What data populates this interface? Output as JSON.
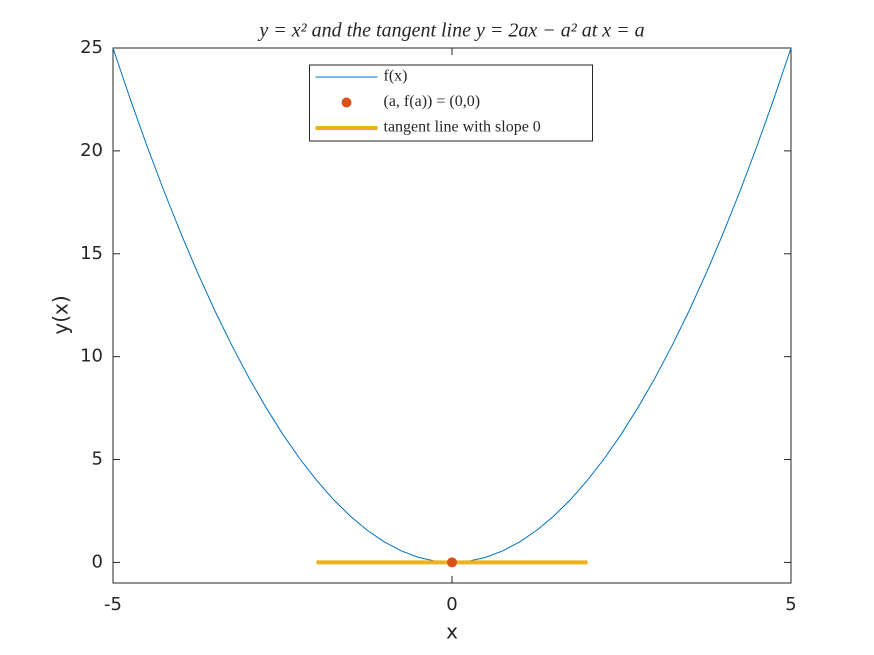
{
  "chart_data": {
    "type": "line",
    "title": "y = x² and the tangent line y = 2ax − a² at x = a",
    "xlabel": "x",
    "ylabel": "y(x)",
    "xlim": [
      -5,
      5
    ],
    "ylim": [
      -1,
      25
    ],
    "xticks": [
      -5,
      0,
      5
    ],
    "yticks": [
      0,
      5,
      10,
      15,
      20,
      25
    ],
    "grid": false,
    "legend": "north",
    "series": [
      {
        "name": "f(x)",
        "type": "line",
        "color": "#0072bd",
        "width": 1,
        "x": [
          -5,
          -4.75,
          -4.5,
          -4.25,
          -4,
          -3.75,
          -3.5,
          -3.25,
          -3,
          -2.75,
          -2.5,
          -2.25,
          -2,
          -1.75,
          -1.5,
          -1.25,
          -1,
          -0.75,
          -0.5,
          -0.25,
          0,
          0.25,
          0.5,
          0.75,
          1,
          1.25,
          1.5,
          1.75,
          2,
          2.25,
          2.5,
          2.75,
          3,
          3.25,
          3.5,
          3.75,
          4,
          4.25,
          4.5,
          4.75,
          5
        ],
        "values": [
          25,
          22.5625,
          20.25,
          18.0625,
          16,
          14.0625,
          12.25,
          10.5625,
          9,
          7.5625,
          6.25,
          5.0625,
          4,
          3.0625,
          2.25,
          1.5625,
          1,
          0.5625,
          0.25,
          0.0625,
          0,
          0.0625,
          0.25,
          0.5625,
          1,
          1.5625,
          2.25,
          3.0625,
          4,
          5.0625,
          6.25,
          7.5625,
          9,
          10.5625,
          12.25,
          14.0625,
          16,
          18.0625,
          20.25,
          22.5625,
          25
        ]
      },
      {
        "name": "(a, f(a)) = (0,0)",
        "type": "scatter",
        "color": "#d95319",
        "x": [
          0
        ],
        "values": [
          0
        ]
      },
      {
        "name": "tangent line with slope 0",
        "type": "line",
        "color": "#edb120",
        "width": 4,
        "x": [
          -2,
          2
        ],
        "values": [
          0,
          0
        ]
      }
    ]
  }
}
